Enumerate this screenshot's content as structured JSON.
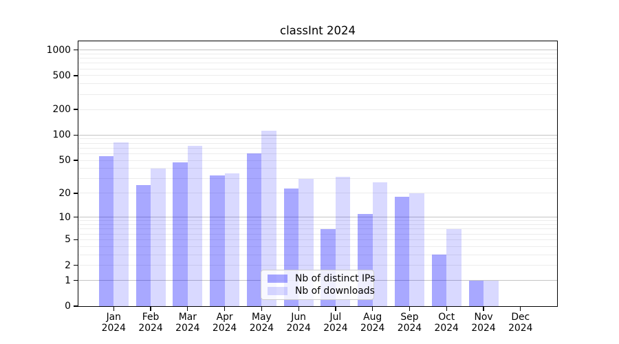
{
  "title": "classInt 2024",
  "chart_data": {
    "type": "bar",
    "title": "classInt 2024",
    "categories": [
      "Jan 2024",
      "Feb 2024",
      "Mar 2024",
      "Apr 2024",
      "May 2024",
      "Jun 2024",
      "Jul 2024",
      "Aug 2024",
      "Sep 2024",
      "Oct 2024",
      "Nov 2024",
      "Dec 2024"
    ],
    "series": [
      {
        "name": "Nb of distinct IPs",
        "color": "rgba(0,0,255,0.34)",
        "values": [
          56,
          25,
          47,
          33,
          60,
          23,
          7,
          11,
          18,
          3,
          1,
          0
        ]
      },
      {
        "name": "Nb of downloads",
        "color": "rgba(0,0,255,0.15)",
        "values": [
          82,
          40,
          74,
          35,
          112,
          30,
          32,
          27,
          20,
          7,
          1,
          0
        ]
      }
    ],
    "xlabel": "",
    "ylabel": "",
    "yscale": "log1p",
    "ylim": [
      0,
      1270
    ],
    "yticks": [
      0,
      1,
      2,
      5,
      10,
      20,
      50,
      100,
      200,
      500,
      1000
    ],
    "ytick_labels": [
      "0",
      "1",
      "2",
      "5",
      "10",
      "20",
      "50",
      "100",
      "200",
      "500",
      "1000"
    ],
    "major_gridlines": [
      1,
      10,
      100,
      1000
    ],
    "minor_gridlines": [
      2,
      3,
      4,
      5,
      6,
      7,
      8,
      9,
      20,
      30,
      40,
      50,
      60,
      70,
      80,
      90,
      200,
      300,
      400,
      500,
      600,
      700,
      800,
      900
    ],
    "grid": true,
    "legend_position": "lower center"
  },
  "colors": {
    "background": "#ffffff",
    "bar_distinct_ips": "rgba(0,0,255,0.34)",
    "bar_downloads": "rgba(0,0,255,0.15)",
    "grid_major": "#c3c3c3",
    "grid_minor": "#ececec",
    "axis": "#000000",
    "legend_border": "#cccccc"
  }
}
